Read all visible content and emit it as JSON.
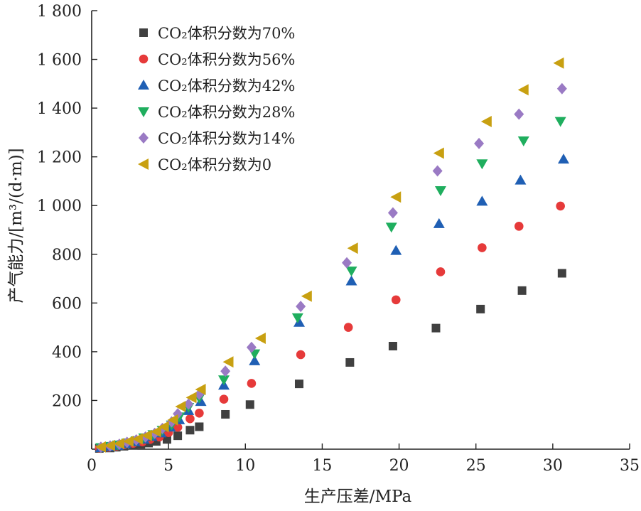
{
  "chart_data": {
    "type": "scatter",
    "title": "",
    "xlabel": "生产压差/MPa",
    "ylabel": "产气能力/[m³/(d·m)]",
    "xlim": [
      0,
      35
    ],
    "ylim": [
      0,
      1800
    ],
    "xticks": [
      0,
      5,
      10,
      15,
      20,
      25,
      30,
      35
    ],
    "yticks": [
      200,
      400,
      600,
      800,
      1000,
      1200,
      1400,
      1600,
      1800
    ],
    "xtick_labels": [
      "0",
      "5",
      "10",
      "15",
      "20",
      "25",
      "30",
      "35"
    ],
    "ytick_labels": [
      "200",
      "400",
      "600",
      "800",
      "1 000",
      "1 200",
      "1 400",
      "1 600",
      "1 800"
    ],
    "legend_position": "top-left",
    "grid": false,
    "series": [
      {
        "name": "CO₂体积分数为70%",
        "marker": "square",
        "color": "#404040",
        "x": [
          0.5,
          1.2,
          1.6,
          2.1,
          2.7,
          3.2,
          3.7,
          4.2,
          4.9,
          5.6,
          6.4,
          7.0,
          8.7,
          10.3,
          13.5,
          16.8,
          19.6,
          22.4,
          25.3,
          28.0,
          30.6
        ],
        "y": [
          3,
          5,
          8,
          12,
          16,
          20,
          25,
          32,
          40,
          55,
          78,
          92,
          143,
          183,
          268,
          356,
          423,
          497,
          575,
          651,
          722
        ]
      },
      {
        "name": "CO₂体积分数为56%",
        "marker": "circle",
        "color": "#e63a3a",
        "x": [
          0.5,
          1.1,
          1.6,
          2.1,
          2.7,
          3.3,
          3.8,
          4.4,
          5.0,
          5.6,
          6.4,
          7.0,
          8.6,
          10.4,
          13.6,
          16.7,
          19.8,
          22.7,
          25.4,
          27.8,
          30.5
        ],
        "y": [
          5,
          8,
          12,
          18,
          24,
          30,
          40,
          50,
          68,
          90,
          125,
          148,
          205,
          270,
          388,
          500,
          613,
          728,
          827,
          915,
          998
        ]
      },
      {
        "name": "CO₂体积分数为42%",
        "marker": "triangle-up",
        "color": "#1f5fb4",
        "x": [
          0.6,
          1.2,
          1.7,
          2.2,
          2.8,
          3.4,
          3.9,
          4.5,
          5.1,
          5.7,
          6.3,
          7.1,
          8.6,
          10.6,
          13.5,
          16.9,
          19.8,
          22.6,
          25.4,
          27.9,
          30.7
        ],
        "y": [
          6,
          10,
          15,
          22,
          30,
          40,
          52,
          66,
          90,
          120,
          158,
          195,
          262,
          362,
          520,
          690,
          815,
          925,
          1017,
          1104,
          1190
        ]
      },
      {
        "name": "CO₂体积分数为28%",
        "marker": "triangle-down",
        "color": "#1fae5e",
        "x": [
          0.6,
          1.2,
          1.7,
          2.3,
          2.9,
          3.4,
          4.0,
          4.6,
          5.2,
          5.7,
          6.3,
          7.0,
          8.6,
          10.6,
          13.4,
          16.9,
          19.5,
          22.7,
          25.4,
          28.1,
          30.5
        ],
        "y": [
          7,
          12,
          18,
          26,
          35,
          47,
          60,
          78,
          100,
          133,
          172,
          210,
          285,
          392,
          540,
          732,
          912,
          1062,
          1172,
          1266,
          1346
        ]
      },
      {
        "name": "CO₂体积分数为14%",
        "marker": "diamond",
        "color": "#9a7ac4",
        "x": [
          0.6,
          1.2,
          1.8,
          2.3,
          2.9,
          3.5,
          4.1,
          4.6,
          5.2,
          5.6,
          6.3,
          7.0,
          8.7,
          10.4,
          13.6,
          16.6,
          19.6,
          22.5,
          25.2,
          27.8,
          30.6
        ],
        "y": [
          8,
          13,
          20,
          28,
          38,
          50,
          65,
          85,
          112,
          145,
          185,
          225,
          320,
          418,
          586,
          765,
          970,
          1142,
          1255,
          1375,
          1480
        ]
      },
      {
        "name": "CO₂体积分数为0",
        "marker": "triangle-left",
        "color": "#c8a011",
        "x": [
          0.6,
          1.2,
          1.8,
          2.4,
          3.0,
          3.6,
          4.2,
          4.7,
          5.3,
          5.8,
          6.5,
          7.1,
          8.9,
          11.0,
          14.0,
          17.0,
          19.8,
          22.6,
          25.7,
          28.1,
          30.4
        ],
        "y": [
          9,
          15,
          23,
          32,
          42,
          56,
          72,
          92,
          120,
          175,
          212,
          245,
          358,
          455,
          628,
          825,
          1035,
          1215,
          1345,
          1475,
          1585
        ]
      }
    ]
  }
}
